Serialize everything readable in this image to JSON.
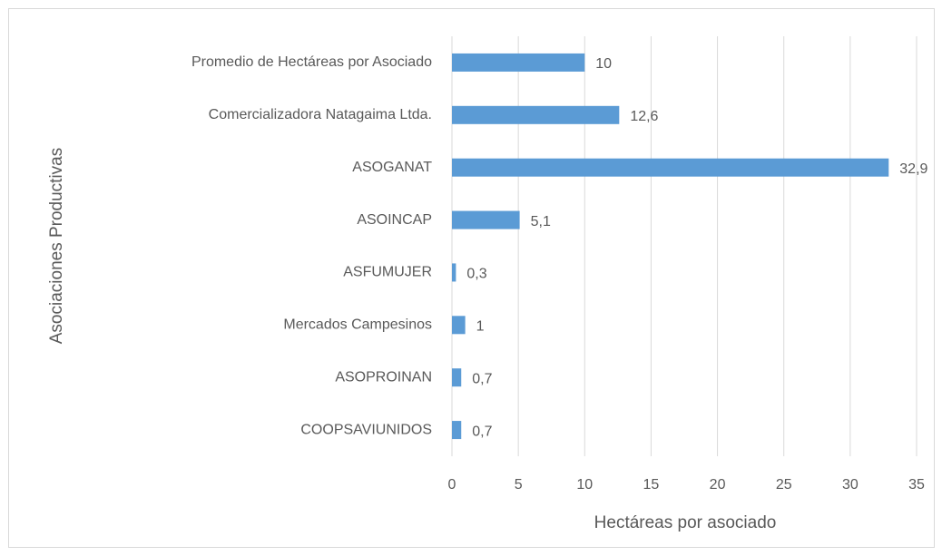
{
  "chart_data": {
    "type": "bar",
    "orientation": "horizontal",
    "categories": [
      "Promedio de Hectáreas por Asociado",
      "Comercializadora Natagaima Ltda.",
      "ASOGANAT",
      "ASOINCAP",
      "ASFUMUJER",
      "Mercados Campesinos",
      "ASOPROINAN",
      "COOPSAVIUNIDOS"
    ],
    "values": [
      10,
      12.6,
      32.9,
      5.1,
      0.3,
      1,
      0.7,
      0.7
    ],
    "value_labels": [
      "10",
      "12,6",
      "32,9",
      "5,1",
      "0,3",
      "1",
      "0,7",
      "0,7"
    ],
    "color": "#5b9bd5",
    "xlim": [
      0,
      35
    ],
    "xticks": [
      0,
      5,
      10,
      15,
      20,
      25,
      30,
      35
    ],
    "grid": true,
    "x_label": "Hectáreas por asociado",
    "y_label": "Asociaciones Productivas"
  }
}
